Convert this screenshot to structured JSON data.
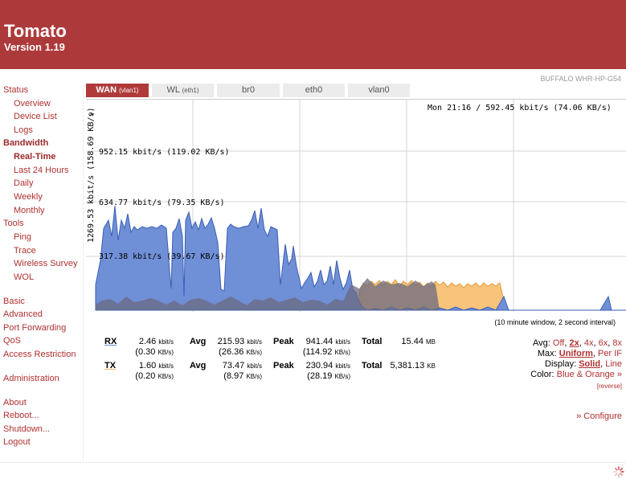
{
  "header": {
    "title": "Tomato",
    "version": "Version 1.19"
  },
  "router_name": "BUFFALO WHR-HP-G54",
  "sidebar": {
    "status": "Status",
    "overview": "Overview",
    "device_list": "Device List",
    "logs": "Logs",
    "bandwidth": "Bandwidth",
    "real_time": "Real-Time",
    "last24": "Last 24 Hours",
    "daily": "Daily",
    "weekly": "Weekly",
    "monthly": "Monthly",
    "tools": "Tools",
    "ping": "Ping",
    "trace": "Trace",
    "wireless_survey": "Wireless Survey",
    "wol": "WOL",
    "basic": "Basic",
    "advanced": "Advanced",
    "port_forwarding": "Port Forwarding",
    "qos": "QoS",
    "access_restriction": "Access Restriction",
    "administration": "Administration",
    "about": "About",
    "reboot": "Reboot...",
    "shutdown": "Shutdown...",
    "logout": "Logout"
  },
  "tabs": [
    {
      "name": "WAN",
      "sub": "(vlan1)"
    },
    {
      "name": "WL",
      "sub": "(eth1)"
    },
    {
      "name": "br0",
      "sub": ""
    },
    {
      "name": "eth0",
      "sub": ""
    },
    {
      "name": "vlan0",
      "sub": ""
    }
  ],
  "graph": {
    "hover_info": "Mon 21:16 / 592.45 kbit/s (74.06 KB/s)",
    "max_label": "1269.53 kbit/s (158.69 KB/s)",
    "max_arrow": ">",
    "lines": [
      "952.15 kbit/s (119.02 KB/s)",
      "634.77 kbit/s (79.35 KB/s)",
      "317.38 kbit/s (39.67 KB/s)"
    ],
    "rx_color": "#6f8fd6",
    "tx_color": "#f5b562",
    "window_note": "(10 minute window, 2 second interval)"
  },
  "stats": {
    "rx": {
      "label": "RX",
      "now": "2.46",
      "now_unit": "kbit/s",
      "now_kb": "(0.30",
      "now_kb_unit": "KB/s)",
      "avg_label": "Avg",
      "avg": "215.93",
      "avg_unit": "kbit/s",
      "avg_kb": "(26.36",
      "avg_kb_unit": "KB/s)",
      "peak_label": "Peak",
      "peak": "941.44",
      "peak_unit": "kbit/s",
      "peak_kb": "(114.92",
      "peak_kb_unit": "KB/s)",
      "total_label": "Total",
      "total": "15.44",
      "total_unit": "MB"
    },
    "tx": {
      "label": "TX",
      "now": "1.60",
      "now_unit": "kbit/s",
      "now_kb": "(0.20",
      "now_kb_unit": "KB/s)",
      "avg_label": "Avg",
      "avg": "73.47",
      "avg_unit": "kbit/s",
      "avg_kb": "(8.97",
      "avg_kb_unit": "KB/s)",
      "peak_label": "Peak",
      "peak": "230.94",
      "peak_unit": "kbit/s",
      "peak_kb": "(28.19",
      "peak_kb_unit": "KB/s)",
      "total_label": "Total",
      "total": "5,381.13",
      "total_unit": "KB"
    }
  },
  "options": {
    "avg_label": "Avg:",
    "avg_opts": [
      "Off",
      "2x",
      "4x",
      "6x",
      "8x"
    ],
    "max_label": "Max:",
    "max_opts": [
      "Uniform",
      "Per IF"
    ],
    "display_label": "Display:",
    "display_opts": [
      "Solid",
      "Line"
    ],
    "color_label": "Color:",
    "color_value": "Blue & Orange »",
    "reverse": "[reverse]"
  },
  "configure": "» Configure"
}
